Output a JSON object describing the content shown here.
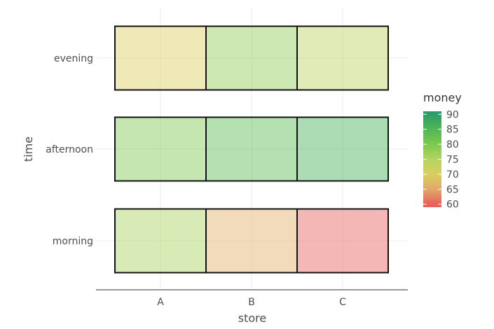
{
  "chart_data": {
    "type": "heatmap",
    "xlabel": "store",
    "ylabel": "time",
    "x_categories": [
      "A",
      "B",
      "C"
    ],
    "y_categories": [
      "morning",
      "afternoon",
      "evening"
    ],
    "cells": [
      {
        "x": "A",
        "y": "evening",
        "value": 70
      },
      {
        "x": "B",
        "y": "evening",
        "value": 78
      },
      {
        "x": "C",
        "y": "evening",
        "value": 74
      },
      {
        "x": "A",
        "y": "afternoon",
        "value": 80
      },
      {
        "x": "B",
        "y": "afternoon",
        "value": 84
      },
      {
        "x": "C",
        "y": "afternoon",
        "value": 86
      },
      {
        "x": "A",
        "y": "morning",
        "value": 76
      },
      {
        "x": "B",
        "y": "morning",
        "value": 66
      },
      {
        "x": "C",
        "y": "morning",
        "value": 60
      }
    ],
    "legend": {
      "title": "money",
      "ticks": [
        90,
        85,
        80,
        75,
        70,
        65,
        60
      ],
      "range": [
        59,
        91
      ],
      "colorscale": [
        [
          60,
          "#e8605a"
        ],
        [
          65,
          "#e0a86a"
        ],
        [
          70,
          "#d9cf60"
        ],
        [
          75,
          "#b3d460"
        ],
        [
          80,
          "#7ec850"
        ],
        [
          85,
          "#4fb755"
        ],
        [
          90,
          "#2e9c6a"
        ]
      ],
      "position": "right"
    },
    "cell_opacity": 0.45,
    "grid": true
  }
}
